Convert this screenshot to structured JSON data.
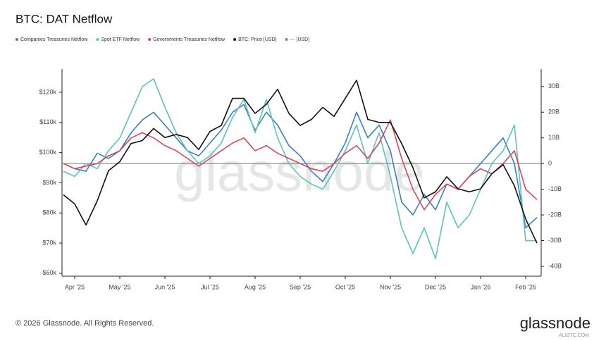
{
  "chart_data": {
    "type": "line",
    "title": "BTC: DAT Netflow",
    "categories": [
      null,
      "Apr '25",
      null,
      null,
      null,
      "May '25",
      null,
      null,
      null,
      "Jun '25",
      null,
      null,
      null,
      "Jul '25",
      null,
      null,
      null,
      "Aug '25",
      null,
      null,
      null,
      "Sep '25",
      null,
      null,
      null,
      "Oct '25",
      null,
      null,
      null,
      "Nov '25",
      null,
      null,
      null,
      "Dec '25",
      null,
      null,
      null,
      "Jan '26",
      null,
      null,
      null,
      "Feb '26",
      null
    ],
    "series": [
      {
        "name": "Companies Treasuries Netflow",
        "color": "#3a7fc1",
        "axis": "y2",
        "values": [
          0,
          -2,
          -3,
          4,
          2,
          5,
          12,
          17,
          20,
          15,
          10,
          5,
          3,
          8,
          13,
          20,
          23,
          13,
          20,
          15,
          7,
          3,
          -3,
          -7,
          0,
          8,
          20,
          10,
          15,
          5,
          -15,
          -20,
          -12,
          -18,
          -8,
          -10,
          -5,
          0,
          5,
          10,
          0,
          -25,
          -21
        ]
      },
      {
        "name": "Spot ETF Netflow",
        "color": "#5cc4b8",
        "axis": "y2",
        "values": [
          -3,
          -5,
          0,
          -2,
          5,
          10,
          20,
          30,
          33,
          22,
          12,
          5,
          0,
          3,
          8,
          18,
          25,
          12,
          25,
          10,
          0,
          -5,
          -8,
          -10,
          -3,
          5,
          15,
          0,
          12,
          -5,
          -25,
          -35,
          -25,
          -37,
          -15,
          -25,
          -20,
          -10,
          0,
          5,
          15,
          -30,
          -30
        ]
      },
      {
        "name": "Governments Treasuries Netflow",
        "color": "#d9475a",
        "axis": "y2",
        "values": [
          0,
          -2,
          -1,
          0,
          3,
          5,
          10,
          12,
          10,
          7,
          5,
          2,
          -1,
          2,
          5,
          8,
          10,
          5,
          7,
          4,
          2,
          0,
          -2,
          -3,
          0,
          4,
          7,
          2,
          8,
          17,
          2,
          -10,
          -18,
          -12,
          -8,
          -10,
          -5,
          -2,
          -4,
          0,
          5,
          -10,
          -14
        ]
      },
      {
        "name": "BTC: Price [USD]",
        "color": "#111111",
        "axis": "y",
        "values": [
          86000,
          83000,
          76000,
          84000,
          94000,
          97000,
          103000,
          104000,
          108000,
          105000,
          106000,
          105000,
          101000,
          107000,
          109000,
          118000,
          118000,
          113000,
          116000,
          121000,
          113000,
          109000,
          111000,
          115000,
          112000,
          118000,
          124000,
          111000,
          110000,
          110000,
          103000,
          95000,
          85000,
          87000,
          92000,
          88000,
          87000,
          88000,
          93000,
          96000,
          89000,
          78000,
          70000
        ]
      }
    ],
    "extra_legend": {
      "name": "--- [USD]",
      "color": "#888888"
    },
    "ylim": [
      59500,
      127700
    ],
    "yticks": [
      {
        "value": 60000,
        "label": "$60k"
      },
      {
        "value": 70000,
        "label": "$70k"
      },
      {
        "value": 80000,
        "label": "$80k"
      },
      {
        "value": 90000,
        "label": "$90k"
      },
      {
        "value": 100000,
        "label": "$100k"
      },
      {
        "value": 110000,
        "label": "$110k"
      },
      {
        "value": 120000,
        "label": "$120k"
      }
    ],
    "y2lim": [
      -43.3,
      36.8
    ],
    "y2ticks": [
      {
        "value": -40,
        "label": "-40B"
      },
      {
        "value": -30,
        "label": "-30B"
      },
      {
        "value": -20,
        "label": "-20B"
      },
      {
        "value": -10,
        "label": "-10B"
      },
      0,
      {
        "value": 10,
        "label": "10B"
      },
      {
        "value": 20,
        "label": "20B"
      },
      {
        "value": 30,
        "label": "30B"
      }
    ],
    "watermark": "glassnode",
    "footer": "© 2026 Glassnode. All Rights Reserved.",
    "logo": "glassnode",
    "logo_sub": "ALIBTC.COM"
  }
}
